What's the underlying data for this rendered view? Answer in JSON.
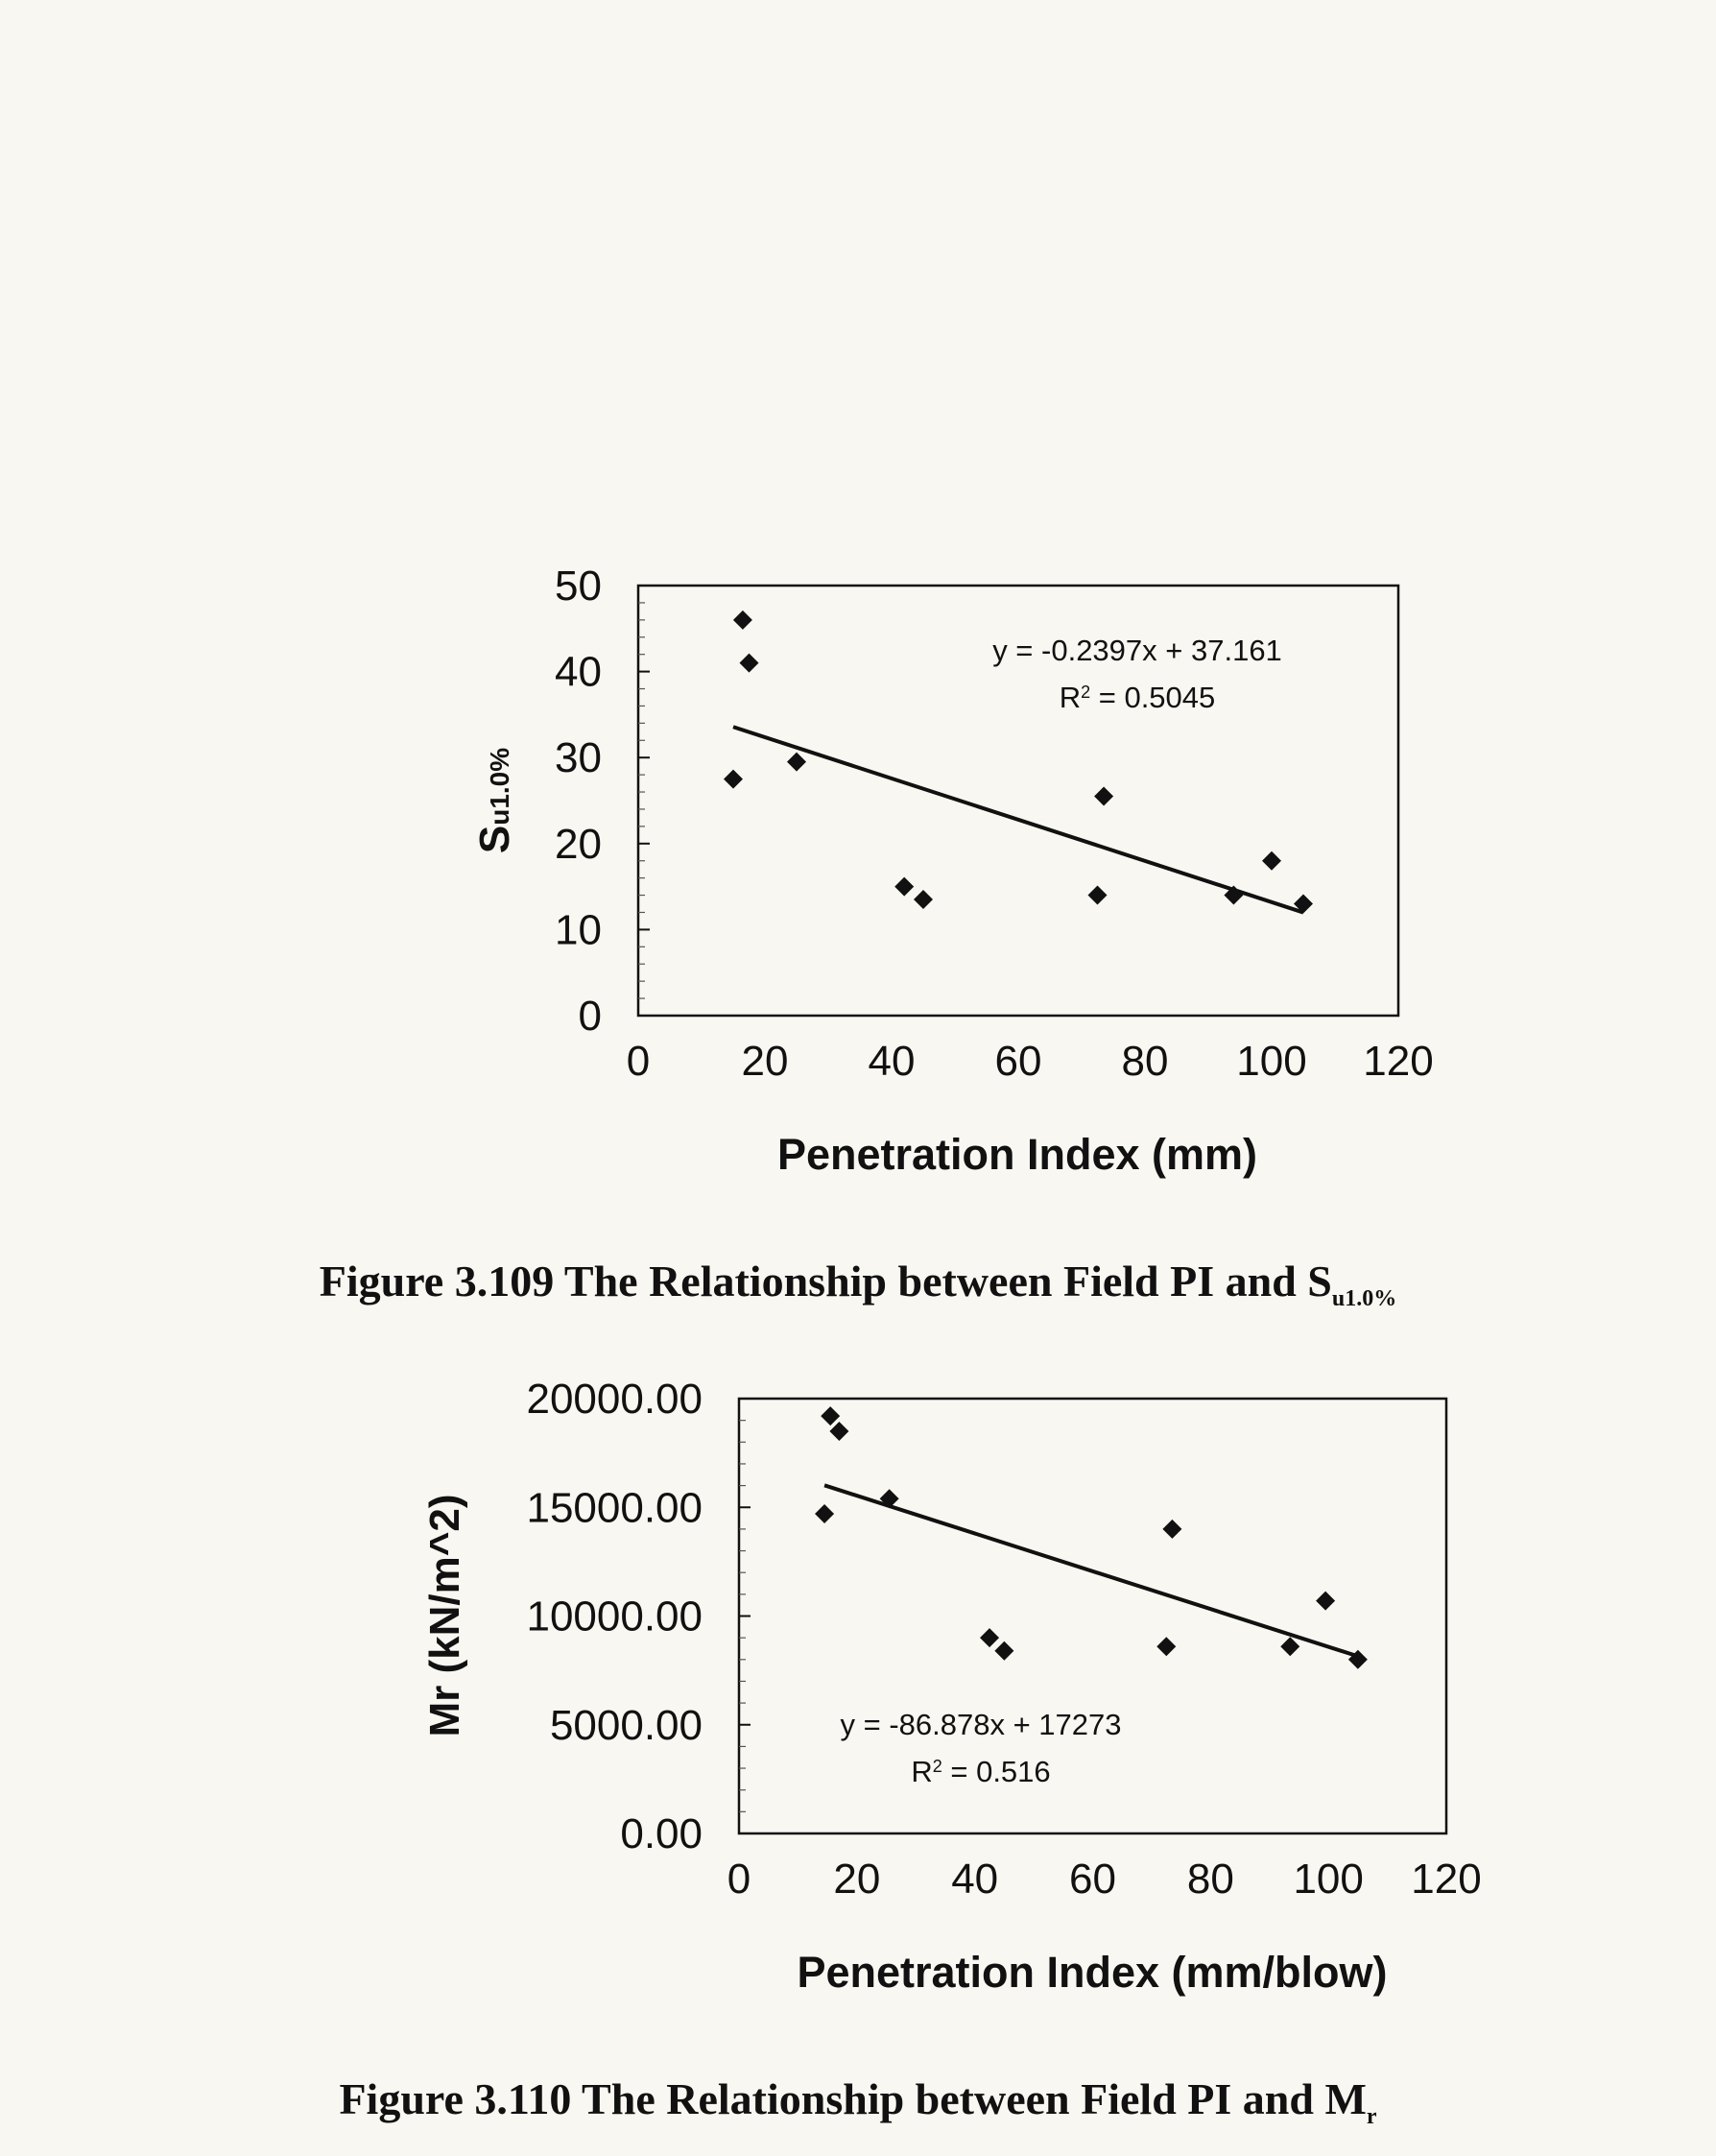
{
  "captions": {
    "fig1_main": "Figure 3.109 The Relationship between Field PI and S",
    "fig1_sub": "u1.0%",
    "fig2_main": "Figure 3.110 The Relationship between Field PI and M",
    "fig2_sub": "r"
  },
  "chart_data": [
    {
      "type": "scatter",
      "xlabel": "Penetration Index (mm)",
      "ylabel_main": "S",
      "ylabel_sub": "u1.0%",
      "xlim": [
        0,
        120
      ],
      "ylim": [
        0,
        50
      ],
      "xticks": [
        "0",
        "20",
        "40",
        "60",
        "80",
        "100",
        "120"
      ],
      "yticks": [
        "0",
        "10",
        "20",
        "30",
        "40",
        "50"
      ],
      "grid": false,
      "legend": "none",
      "marker_color": "#111111",
      "points": [
        {
          "x": 15,
          "y": 27.5
        },
        {
          "x": 16.5,
          "y": 46
        },
        {
          "x": 17.5,
          "y": 41
        },
        {
          "x": 25,
          "y": 29.5
        },
        {
          "x": 42,
          "y": 15
        },
        {
          "x": 45,
          "y": 13.5
        },
        {
          "x": 72.5,
          "y": 14
        },
        {
          "x": 73.5,
          "y": 25.5
        },
        {
          "x": 94,
          "y": 14
        },
        {
          "x": 100,
          "y": 18
        },
        {
          "x": 105,
          "y": 13
        }
      ],
      "trendline": {
        "slope": -0.2397,
        "intercept": 37.161,
        "x_start": 15,
        "x_end": 105
      },
      "equation": "y = -0.2397x + 37.161",
      "r2_prefix": "R",
      "r2_value": " = 0.5045"
    },
    {
      "type": "scatter",
      "xlabel": "Penetration Index (mm/blow)",
      "ylabel": "Mr (kN/m^2)",
      "xlim": [
        0,
        120
      ],
      "ylim": [
        0,
        20000
      ],
      "xticks": [
        "0",
        "20",
        "40",
        "60",
        "80",
        "100",
        "120"
      ],
      "yticks": [
        "0.00",
        "5000.00",
        "10000.00",
        "15000.00",
        "20000.00"
      ],
      "grid": false,
      "legend": "none",
      "marker_color": "#111111",
      "points": [
        {
          "x": 14.5,
          "y": 14700
        },
        {
          "x": 15.5,
          "y": 19200
        },
        {
          "x": 17,
          "y": 18500
        },
        {
          "x": 25.5,
          "y": 15400
        },
        {
          "x": 42.5,
          "y": 9000
        },
        {
          "x": 45,
          "y": 8400
        },
        {
          "x": 72.5,
          "y": 8600
        },
        {
          "x": 73.5,
          "y": 14000
        },
        {
          "x": 93.5,
          "y": 8600
        },
        {
          "x": 99.5,
          "y": 10700
        },
        {
          "x": 105,
          "y": 8000
        }
      ],
      "trendline": {
        "slope": -86.878,
        "intercept": 17273,
        "x_start": 14.5,
        "x_end": 105
      },
      "equation": "y = -86.878x + 17273",
      "r2_prefix": "R",
      "r2_value": " = 0.516"
    }
  ]
}
